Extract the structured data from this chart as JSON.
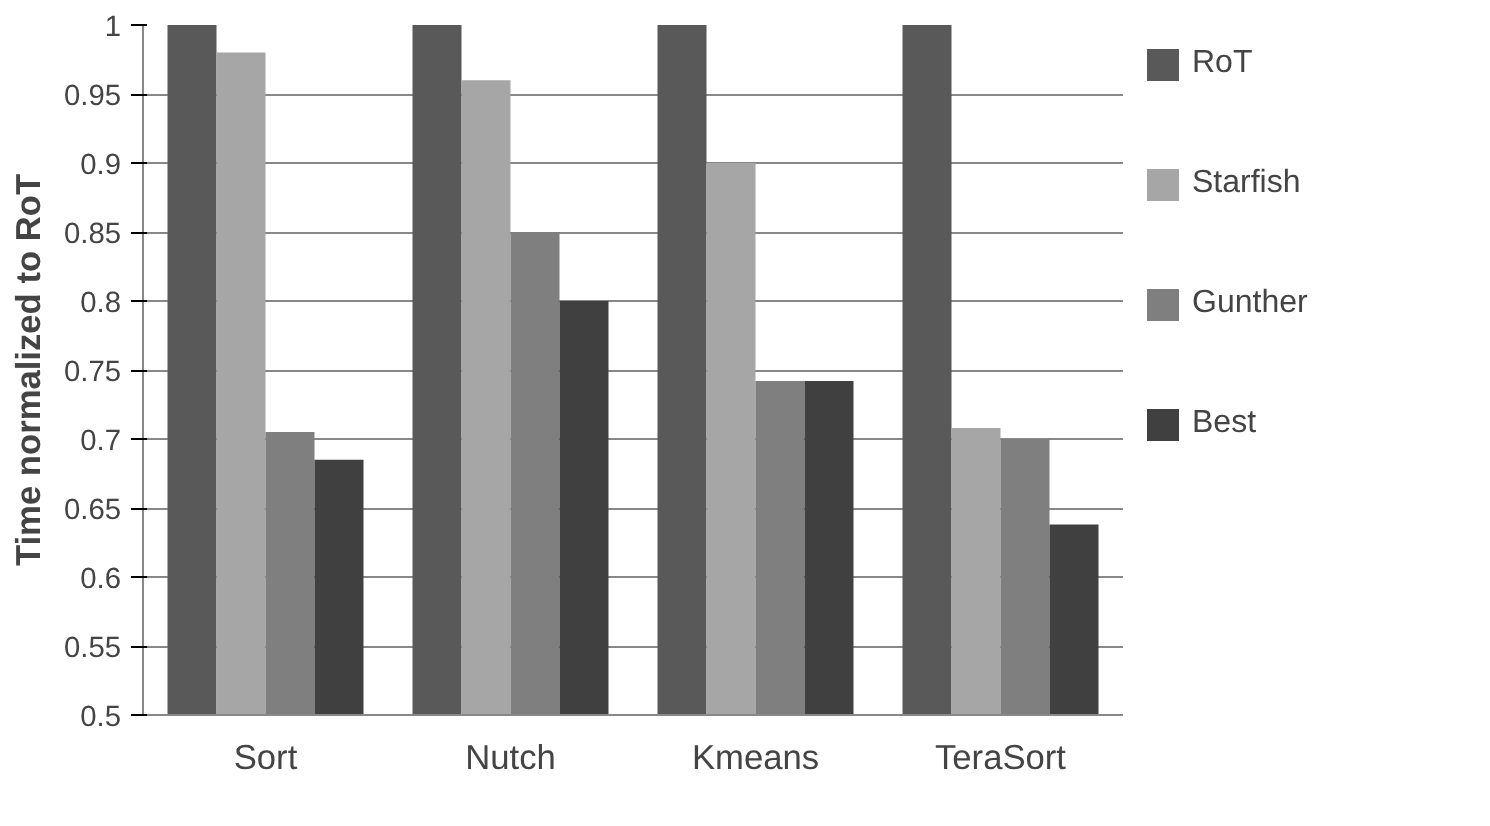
{
  "chart_data": {
    "type": "bar",
    "ylabel": "Time normalized to RoT",
    "categories": [
      "Sort",
      "Nutch",
      "Kmeans",
      "TeraSort"
    ],
    "series": [
      {
        "name": "RoT",
        "color": "#595959",
        "values": [
          1,
          1,
          1,
          1
        ]
      },
      {
        "name": "Starfish",
        "color": "#a6a6a6",
        "values": [
          0.98,
          0.96,
          0.9,
          0.708
        ]
      },
      {
        "name": "Gunther",
        "color": "#7f7f7f",
        "values": [
          0.705,
          0.85,
          0.742,
          0.7
        ]
      },
      {
        "name": "Best",
        "color": "#404040",
        "values": [
          0.685,
          0.8,
          0.742,
          0.638
        ]
      }
    ],
    "ylim": [
      0.5,
      1
    ],
    "yticks": [
      0.5,
      0.55,
      0.6,
      0.65,
      0.7,
      0.75,
      0.8,
      0.85,
      0.9,
      0.95,
      1
    ],
    "grid": "y",
    "legend": "right"
  }
}
